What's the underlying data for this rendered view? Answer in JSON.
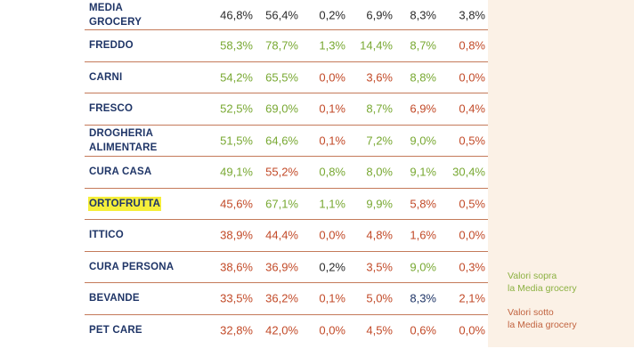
{
  "colors": {
    "dark": "#2b2b2b",
    "green": "#78a832",
    "red": "#c24a28",
    "blue": "#1f3567"
  },
  "legend": {
    "above_line1": "Valori sopra",
    "above_line2": "la Media grocery",
    "below_line1": "Valori sotto",
    "below_line2": "la Media grocery"
  },
  "rows": [
    {
      "label1": "MEDIA",
      "label2": "GROCERY",
      "values": [
        "46,8%",
        "56,4%",
        "0,2%",
        "6,9%",
        "8,3%",
        "3,8%"
      ],
      "tones": [
        "d",
        "d",
        "d",
        "d",
        "d",
        "d"
      ]
    },
    {
      "label1": "FREDDO",
      "label2": "",
      "values": [
        "58,3%",
        "78,7%",
        "1,3%",
        "14,4%",
        "8,7%",
        "0,8%"
      ],
      "tones": [
        "g",
        "g",
        "g",
        "g",
        "g",
        "r"
      ]
    },
    {
      "label1": "CARNI",
      "label2": "",
      "values": [
        "54,2%",
        "65,5%",
        "0,0%",
        "3,6%",
        "8,8%",
        "0,0%"
      ],
      "tones": [
        "g",
        "g",
        "r",
        "r",
        "g",
        "r"
      ]
    },
    {
      "label1": "FRESCO",
      "label2": "",
      "values": [
        "52,5%",
        "69,0%",
        "0,1%",
        "8,7%",
        "6,9%",
        "0,4%"
      ],
      "tones": [
        "g",
        "g",
        "r",
        "g",
        "r",
        "r"
      ]
    },
    {
      "label1": "DROGHERIA",
      "label2": "ALIMENTARE",
      "values": [
        "51,5%",
        "64,6%",
        "0,1%",
        "7,2%",
        "9,0%",
        "0,5%"
      ],
      "tones": [
        "g",
        "g",
        "r",
        "g",
        "g",
        "r"
      ]
    },
    {
      "label1": "CURA CASA",
      "label2": "",
      "values": [
        "49,1%",
        "55,2%",
        "0,8%",
        "8,0%",
        "9,1%",
        "30,4%"
      ],
      "tones": [
        "g",
        "r",
        "g",
        "g",
        "g",
        "g"
      ]
    },
    {
      "label1": "ORTOFRUTTA",
      "label2": "",
      "highlight": true,
      "values": [
        "45,6%",
        "67,1%",
        "1,1%",
        "9,9%",
        "5,8%",
        "0,5%"
      ],
      "tones": [
        "r",
        "g",
        "g",
        "g",
        "r",
        "r"
      ]
    },
    {
      "label1": "ITTICO",
      "label2": "",
      "values": [
        "38,9%",
        "44,4%",
        "0,0%",
        "4,8%",
        "1,6%",
        "0,0%"
      ],
      "tones": [
        "r",
        "r",
        "r",
        "r",
        "r",
        "r"
      ]
    },
    {
      "label1": "CURA PERSONA",
      "label2": "",
      "values": [
        "38,6%",
        "36,9%",
        "0,2%",
        "3,5%",
        "9,0%",
        "0,3%"
      ],
      "tones": [
        "r",
        "r",
        "d",
        "r",
        "g",
        "r"
      ]
    },
    {
      "label1": "BEVANDE",
      "label2": "",
      "values": [
        "33,5%",
        "36,2%",
        "0,1%",
        "5,0%",
        "8,3%",
        "2,1%"
      ],
      "tones": [
        "r",
        "r",
        "r",
        "r",
        "b",
        "r"
      ]
    },
    {
      "label1": "PET CARE",
      "label2": "",
      "values": [
        "32,8%",
        "42,0%",
        "0,0%",
        "4,5%",
        "0,6%",
        "0,0%"
      ],
      "tones": [
        "r",
        "r",
        "r",
        "r",
        "r",
        "r"
      ]
    }
  ]
}
